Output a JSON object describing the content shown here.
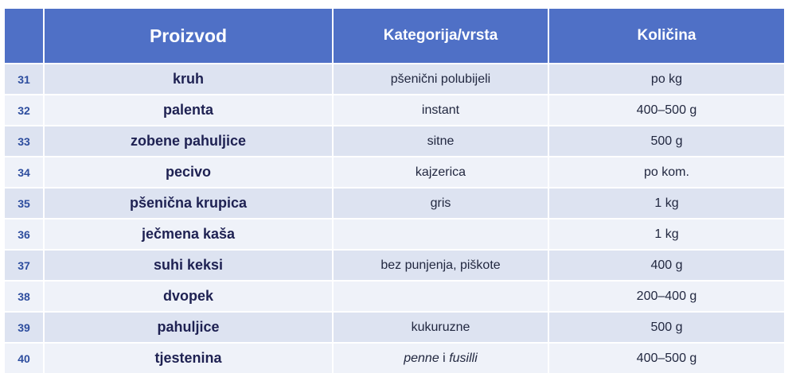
{
  "table": {
    "headers": {
      "number": "",
      "product": "Proizvod",
      "category": "Kategorija/vrsta",
      "quantity": "Količina"
    },
    "rows": [
      {
        "num": "31",
        "product": "kruh",
        "category": "pšenični polubijeli",
        "quantity": "po kg"
      },
      {
        "num": "32",
        "product": "palenta",
        "category": "instant",
        "quantity": "400–500 g"
      },
      {
        "num": "33",
        "product": "zobene pahuljice",
        "category": "sitne",
        "quantity": "500 g"
      },
      {
        "num": "34",
        "product": "pecivo",
        "category": "kajzerica",
        "quantity": "po kom."
      },
      {
        "num": "35",
        "product": "pšenična krupica",
        "category": "gris",
        "quantity": "1 kg"
      },
      {
        "num": "36",
        "product": "ječmena kaša",
        "category": "",
        "quantity": "1 kg"
      },
      {
        "num": "37",
        "product": "suhi keksi",
        "category": "bez punjenja, piškote",
        "quantity": "400 g"
      },
      {
        "num": "38",
        "product": "dvopek",
        "category": "",
        "quantity": "200–400 g"
      },
      {
        "num": "39",
        "product": "pahuljice",
        "category": "kukuruzne",
        "quantity": "500 g"
      },
      {
        "num": "40",
        "product": "tjestenina",
        "category_parts": [
          "penne",
          " i ",
          "fusilli"
        ],
        "quantity": "400–500 g"
      }
    ]
  },
  "colors": {
    "header_bg": "#4f70c6",
    "row_odd": "#dde3f1",
    "row_even": "#eff2f9",
    "number_text": "#2d4d9e",
    "product_text": "#1e2152"
  }
}
